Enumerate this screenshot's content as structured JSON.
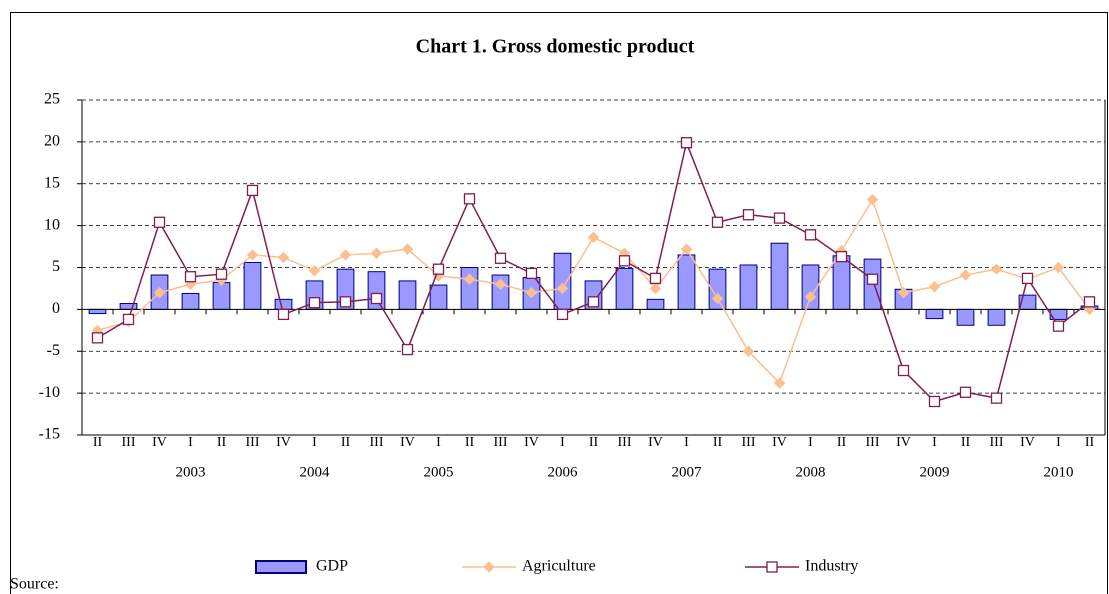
{
  "chart_data": {
    "type": "bar_line",
    "title": "Chart 1. Gross domestic product",
    "categories": [
      "II",
      "III",
      "IV",
      "I",
      "II",
      "III",
      "IV",
      "I",
      "II",
      "III",
      "IV",
      "I",
      "II",
      "III",
      "IV",
      "I",
      "II",
      "III",
      "IV",
      "I",
      "II",
      "III",
      "IV",
      "I",
      "II",
      "III",
      "IV",
      "I",
      "II",
      "III",
      "IV",
      "I",
      "II"
    ],
    "year_labels": [
      null,
      null,
      null,
      "2003",
      null,
      null,
      null,
      "2004",
      null,
      null,
      null,
      "2005",
      null,
      null,
      null,
      "2006",
      null,
      null,
      null,
      "2007",
      null,
      null,
      null,
      "2008",
      null,
      null,
      null,
      "2009",
      null,
      null,
      null,
      "2010",
      null
    ],
    "series": [
      {
        "name": "GDP",
        "kind": "bar",
        "color": "#9999ff",
        "edge": "#000080",
        "values": [
          -0.5,
          0.7,
          4.1,
          1.9,
          3.2,
          5.6,
          1.2,
          3.4,
          4.8,
          4.5,
          3.4,
          2.9,
          5.0,
          4.1,
          3.8,
          6.7,
          3.4,
          4.9,
          1.2,
          6.5,
          4.8,
          5.3,
          7.9,
          5.3,
          6.4,
          6.0,
          2.4,
          -1.1,
          -1.9,
          -1.9,
          1.7,
          -1.2,
          0.4
        ]
      },
      {
        "name": "Agriculture",
        "kind": "line",
        "marker": "diamond",
        "color": "#fac090",
        "values": [
          -2.5,
          -1.5,
          2.0,
          3.0,
          3.5,
          6.5,
          6.2,
          4.6,
          6.5,
          6.7,
          7.2,
          4.0,
          3.6,
          3.0,
          2.0,
          2.5,
          8.6,
          6.7,
          2.5,
          7.2,
          1.3,
          -5.0,
          -8.8,
          1.5,
          7.0,
          13.1,
          2.0,
          2.7,
          4.1,
          4.8,
          3.6,
          5.0,
          0.0
        ]
      },
      {
        "name": "Industry",
        "kind": "line",
        "marker": "square",
        "color": "#7f1f4f",
        "values": [
          -3.4,
          -1.2,
          10.4,
          3.9,
          4.2,
          14.2,
          -0.6,
          0.8,
          0.9,
          1.3,
          -4.8,
          4.8,
          13.2,
          6.1,
          4.3,
          -0.6,
          0.9,
          5.8,
          3.7,
          19.9,
          10.4,
          11.3,
          10.9,
          8.9,
          6.3,
          3.6,
          -7.3,
          -11.0,
          -9.9,
          -10.6,
          3.7,
          -2.0,
          0.9
        ]
      }
    ],
    "ylim": [
      -15,
      25
    ],
    "yticks": [
      -15,
      -10,
      -5,
      0,
      5,
      10,
      15,
      20,
      25
    ],
    "grid": true,
    "legend": "bottom",
    "source": "Source:"
  }
}
